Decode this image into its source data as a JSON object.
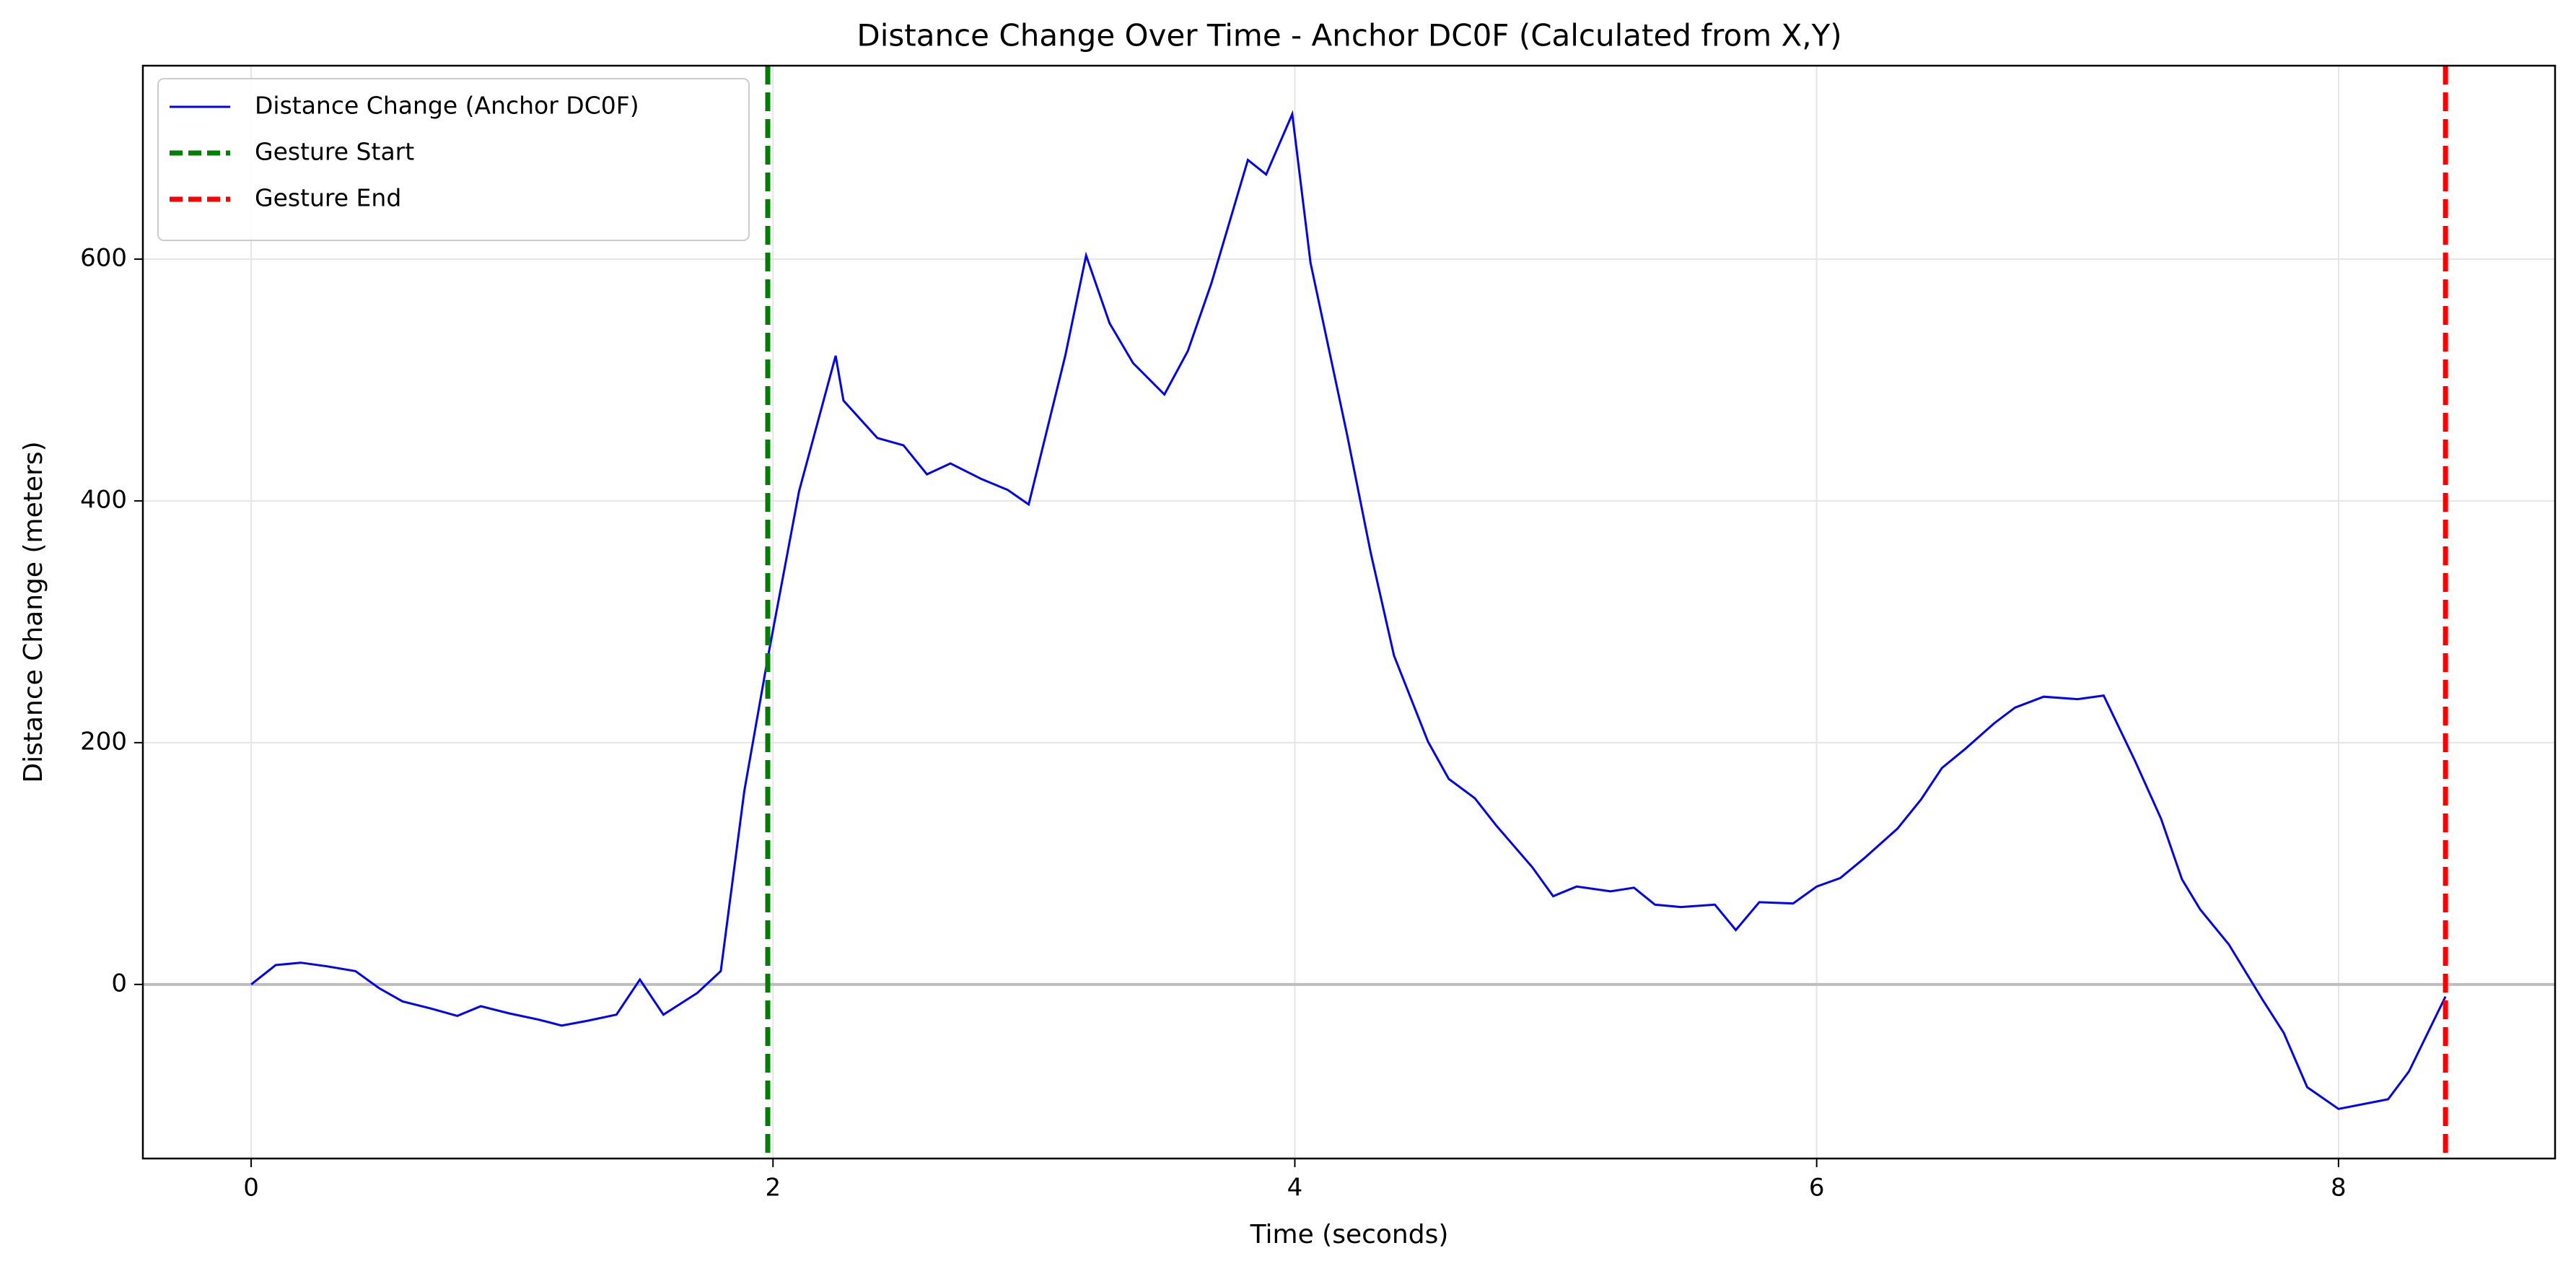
{
  "chart_data": {
    "type": "line",
    "title": "Distance Change Over Time - Anchor DC0F (Calculated from X,Y)",
    "x_label": "Time (seconds)",
    "y_label": "Distance Change (meters)",
    "xlim": [
      -0.415,
      8.83
    ],
    "ylim": [
      -144,
      760
    ],
    "xticks": [
      0,
      2,
      4,
      6,
      8
    ],
    "yticks": [
      0,
      200,
      400,
      600
    ],
    "grid": true,
    "legend": "upper left",
    "x": [
      0,
      0.094,
      0.19,
      0.29,
      0.4,
      0.49,
      0.58,
      0.69,
      0.79,
      0.88,
      0.99,
      1.1,
      1.19,
      1.29,
      1.4,
      1.49,
      1.58,
      1.71,
      1.8,
      1.89,
      1.98,
      2.1,
      2.24,
      2.27,
      2.4,
      2.5,
      2.59,
      2.68,
      2.8,
      2.9,
      2.98,
      3.12,
      3.2,
      3.29,
      3.38,
      3.5,
      3.59,
      3.68,
      3.82,
      3.89,
      3.99,
      4.06,
      4.2,
      4.29,
      4.38,
      4.51,
      4.59,
      4.69,
      4.77,
      4.91,
      4.99,
      5.08,
      5.21,
      5.3,
      5.38,
      5.48,
      5.61,
      5.69,
      5.78,
      5.91,
      6.0,
      6.09,
      6.18,
      6.31,
      6.4,
      6.48,
      6.57,
      6.68,
      6.76,
      6.87,
      7.0,
      7.1,
      7.22,
      7.32,
      7.4,
      7.47,
      7.58,
      7.71,
      7.79,
      7.88,
      8.0,
      8.19,
      8.27,
      8.41
    ],
    "series": [
      {
        "name": "Distance Change (Anchor DC0F)",
        "color": "#0000ff",
        "values": [
          0,
          16,
          18,
          15,
          11,
          -3,
          -14,
          -20,
          -26,
          -18,
          -24,
          -29,
          -34,
          -30,
          -25,
          4,
          -25,
          -7,
          11,
          160,
          270,
          408,
          520,
          483,
          452,
          446,
          422,
          431,
          418,
          409,
          397,
          520,
          603,
          547,
          514,
          488,
          524,
          580,
          682,
          670,
          720,
          597,
          455,
          358,
          272,
          201,
          170,
          154,
          132,
          97,
          73,
          81,
          77,
          80,
          66,
          64,
          66,
          45,
          68,
          67,
          81,
          88,
          104,
          129,
          153,
          179,
          195,
          216,
          229,
          238,
          236,
          239,
          185,
          137,
          87,
          62,
          33,
          -13,
          -40,
          -85,
          -103,
          -95,
          -72,
          -10
        ]
      }
    ],
    "vlines": [
      {
        "name": "Gesture Start",
        "x": 1.98,
        "color": "#008000"
      },
      {
        "name": "Gesture End",
        "x": 8.41,
        "color": "#ff0000"
      }
    ],
    "hlines": [
      {
        "y": 0,
        "color": "#bdbdbd"
      }
    ]
  }
}
